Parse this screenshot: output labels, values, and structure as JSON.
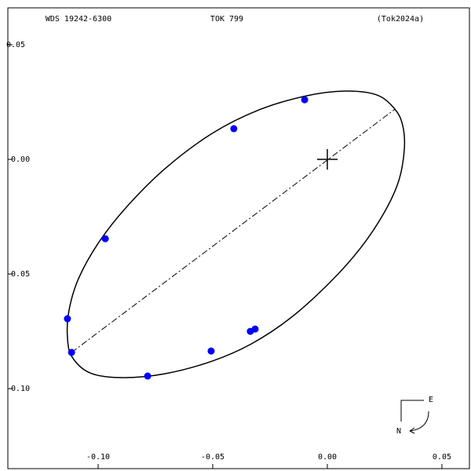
{
  "chart_data": {
    "type": "scatter",
    "title": "WDS 19242-6300",
    "subtitle": "TOK 799",
    "reference": "(Tok2024a)",
    "xlim": [
      -0.1394,
      0.062
    ],
    "ylim": [
      -0.1349,
      0.0661
    ],
    "xticks": [
      {
        "value": -0.1,
        "label": "-0.10"
      },
      {
        "value": -0.05,
        "label": "-0.05"
      },
      {
        "value": 0,
        "label": "0.00"
      },
      0.05
    ],
    "yticks": [
      0.05,
      {
        "value": 0,
        "label": "-0.00"
      },
      {
        "value": -0.05,
        "label": "-0.05"
      },
      {
        "value": -0.1,
        "label": "-0.10"
      }
    ],
    "observations": {
      "color": "#0000ff",
      "x": [
        -0.0099,
        -0.0408,
        -0.0969,
        -0.1134,
        -0.1116,
        -0.0784,
        -0.0507,
        -0.0336,
        -0.0315
      ],
      "y": [
        0.026,
        0.0134,
        -0.0346,
        -0.0695,
        -0.0842,
        -0.0945,
        -0.0836,
        -0.075,
        -0.074
      ]
    },
    "orbit": {
      "color": "#000000",
      "x": [
        0.0295,
        0.0329,
        0.0336,
        0.0312,
        0.025,
        0.0147,
        0.001,
        -0.0161,
        -0.0332,
        -0.0503,
        -0.0709,
        -0.0897,
        -0.1034,
        -0.1113,
        -0.1134,
        -0.1127,
        -0.1086,
        -0.1,
        -0.088,
        -0.0709,
        -0.0503,
        -0.0298,
        -0.0092,
        0.0079,
        0.0216
      ],
      "y": [
        0.0219,
        0.0147,
        0.0045,
        -0.0092,
        -0.0229,
        -0.0384,
        -0.0538,
        -0.0692,
        -0.0805,
        -0.088,
        -0.0935,
        -0.0952,
        -0.0932,
        -0.0863,
        -0.0777,
        -0.0658,
        -0.0521,
        -0.0366,
        -0.0212,
        -0.0041,
        0.0113,
        0.0216,
        0.0277,
        0.0298,
        0.0281
      ]
    },
    "line_of_apsides": {
      "color": "#000000",
      "x": [
        -0.1116,
        0.0295
      ],
      "y": [
        -0.0842,
        0.0219
      ]
    },
    "primary": {
      "x": 0,
      "y": 0
    },
    "compass": {
      "east": "E",
      "north": "N"
    }
  }
}
